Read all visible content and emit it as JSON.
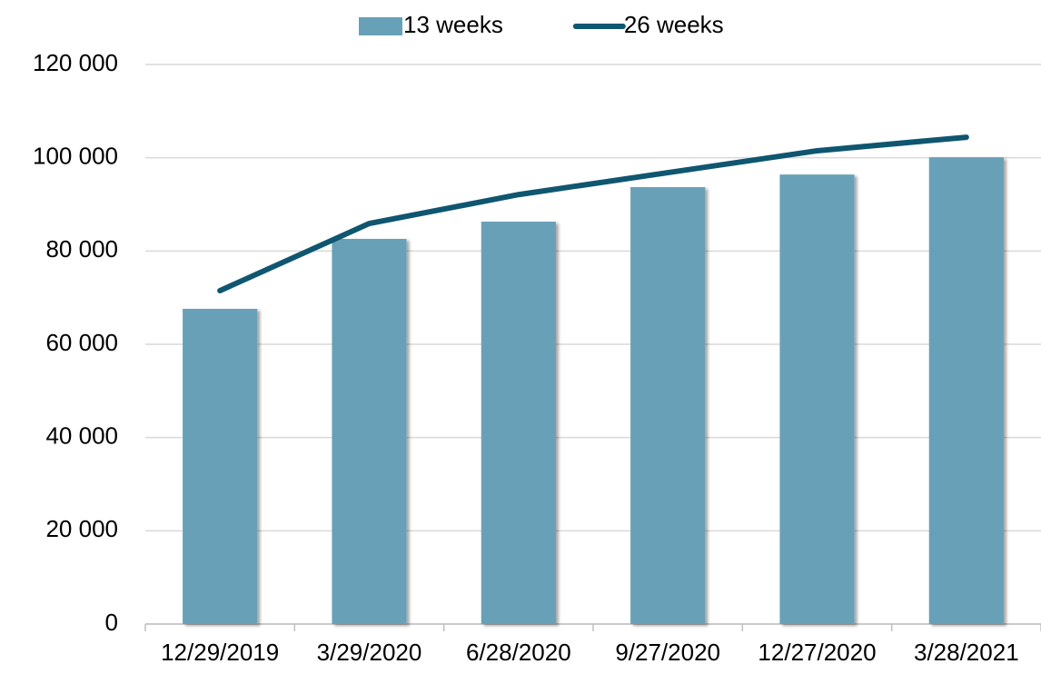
{
  "chart_data": {
    "type": "combo",
    "categories": [
      "12/29/2019",
      "3/29/2020",
      "6/28/2020",
      "9/27/2020",
      "12/27/2020",
      "3/28/2021"
    ],
    "series": [
      {
        "name": "13 weeks",
        "type": "bar",
        "color": "#67a1b7",
        "values": [
          67600,
          82600,
          86300,
          93700,
          96400,
          100100
        ]
      },
      {
        "name": "26 weeks",
        "type": "line",
        "color": "#0f5670",
        "values": [
          71500,
          85900,
          92100,
          96800,
          101500,
          104400
        ]
      }
    ],
    "ylim": [
      0,
      120000
    ],
    "yticks": [
      0,
      {
        "value": 20000,
        "label": "20 000"
      },
      {
        "value": 40000,
        "label": "40 000"
      },
      {
        "value": 60000,
        "label": "60 000"
      },
      {
        "value": 80000,
        "label": "80 000"
      },
      {
        "value": 100000,
        "label": "100 000"
      },
      {
        "value": 120000,
        "label": "120 000"
      }
    ],
    "grid": true,
    "legend": "top"
  }
}
